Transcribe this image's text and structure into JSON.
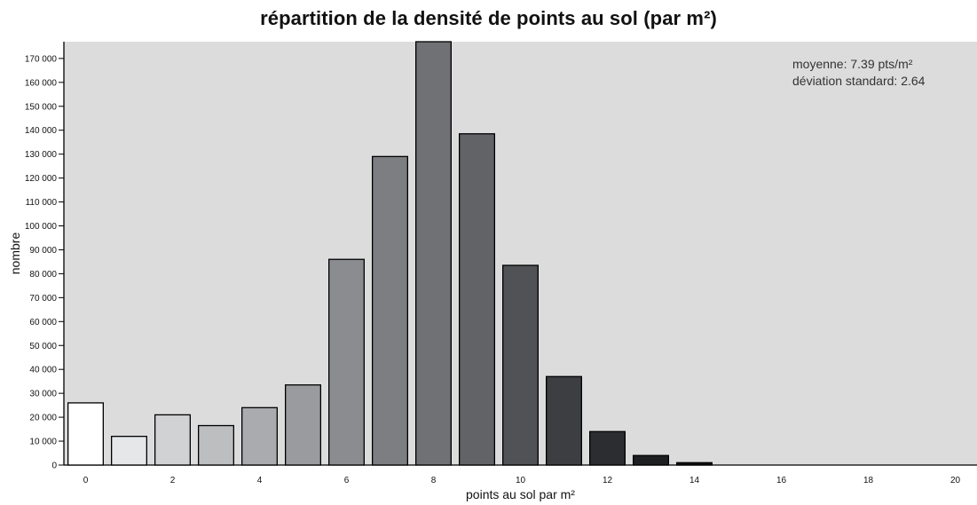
{
  "chart_data": {
    "type": "bar",
    "title": "répartition de la densité de points au sol (par m²)",
    "xlabel": "points au sol par m²",
    "ylabel": "nombre",
    "x": [
      0,
      1,
      2,
      3,
      4,
      5,
      6,
      7,
      8,
      9,
      10,
      11,
      12,
      13,
      14
    ],
    "values": [
      26000,
      12000,
      21000,
      16500,
      24000,
      33500,
      86000,
      129000,
      178000,
      138500,
      83500,
      37000,
      14000,
      4000,
      1000
    ],
    "xlim": [
      -0.5,
      20.5
    ],
    "ylim": [
      0,
      177000
    ],
    "xticks": [
      "0",
      "2",
      "4",
      "6",
      "8",
      "10",
      "12",
      "14",
      "16",
      "18",
      "20"
    ],
    "xtick_values": [
      0,
      2,
      4,
      6,
      8,
      10,
      12,
      14,
      16,
      18,
      20
    ],
    "yticks": [
      "0",
      "10 000",
      "20 000",
      "30 000",
      "40 000",
      "50 000",
      "60 000",
      "70 000",
      "80 000",
      "90 000",
      "100 000",
      "110 000",
      "120 000",
      "130 000",
      "140 000",
      "150 000",
      "160 000",
      "170 000"
    ],
    "ytick_values": [
      0,
      10000,
      20000,
      30000,
      40000,
      50000,
      60000,
      70000,
      80000,
      90000,
      100000,
      110000,
      120000,
      130000,
      140000,
      150000,
      160000,
      170000
    ],
    "bar_colors": [
      "#ffffff",
      "#e6e7e9",
      "#d1d2d4",
      "#bcbec0",
      "#a9abae",
      "#999b9e",
      "#8a8c90",
      "#7c7e82",
      "#6f7175",
      "#616367",
      "#505256",
      "#3c3e41",
      "#2c2d30",
      "#1e1f21",
      "#111213"
    ],
    "plot_background": "#dcdcdc",
    "annotations": [
      "moyenne: 7.39 pts/m²",
      "déviation standard: 2.64"
    ],
    "grid": false
  }
}
